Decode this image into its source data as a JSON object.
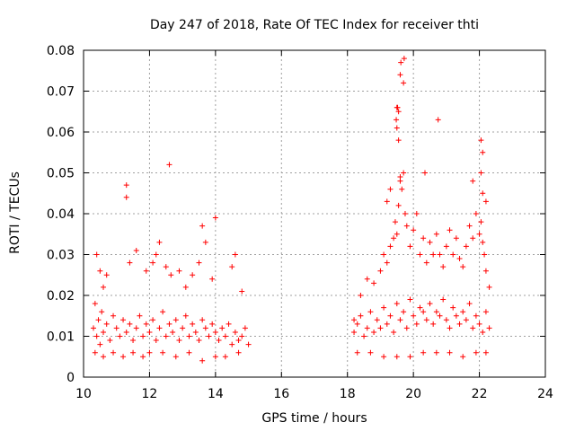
{
  "chart_data": {
    "type": "scatter",
    "title": "Day 247 of 2018, Rate Of TEC Index for receiver thti",
    "xlabel": "GPS time / hours",
    "ylabel": "ROTI / TECUs",
    "xlim": [
      10,
      24
    ],
    "ylim": [
      0,
      0.08
    ],
    "grid": true,
    "marker": "+",
    "color": "#ff0000",
    "x_ticks": [
      "10",
      "12",
      "14",
      "16",
      "18",
      "20",
      "22",
      "24"
    ],
    "y_ticks": [
      "0",
      "0.01",
      "0.02",
      "0.03",
      "0.04",
      "0.05",
      "0.06",
      "0.07",
      "0.08"
    ],
    "series": [
      {
        "name": "ROTI",
        "x": [
          10.3,
          10.35,
          10.4,
          10.45,
          10.5,
          10.55,
          10.6,
          10.7,
          10.8,
          10.9,
          11.0,
          11.1,
          11.2,
          11.3,
          11.4,
          11.5,
          11.6,
          11.7,
          11.8,
          11.9,
          12.0,
          12.1,
          12.2,
          12.3,
          12.4,
          12.5,
          12.6,
          12.7,
          12.8,
          12.9,
          13.0,
          13.1,
          13.2,
          13.3,
          13.4,
          13.5,
          13.6,
          13.7,
          13.8,
          13.9,
          14.0,
          14.1,
          14.2,
          14.3,
          14.4,
          14.5,
          14.6,
          14.7,
          14.8,
          14.9,
          15.0,
          10.4,
          10.5,
          10.6,
          10.7,
          11.3,
          11.3,
          11.4,
          11.6,
          11.9,
          12.1,
          12.2,
          12.3,
          12.5,
          12.6,
          12.65,
          12.9,
          13.1,
          13.3,
          13.5,
          13.6,
          13.7,
          13.9,
          14.0,
          14.5,
          14.6,
          14.8,
          10.35,
          10.6,
          10.9,
          11.2,
          11.5,
          11.8,
          12.0,
          12.4,
          12.8,
          13.2,
          13.6,
          14.0,
          14.3,
          14.7,
          18.2,
          18.3,
          18.4,
          18.5,
          18.6,
          18.7,
          18.8,
          18.9,
          19.0,
          19.1,
          19.2,
          19.3,
          19.4,
          19.5,
          19.6,
          19.7,
          19.8,
          19.9,
          20.0,
          20.1,
          20.2,
          20.3,
          20.4,
          20.5,
          20.6,
          20.7,
          20.8,
          20.9,
          21.0,
          21.1,
          21.2,
          21.3,
          21.4,
          21.5,
          21.6,
          21.7,
          21.8,
          21.9,
          22.0,
          22.1,
          22.2,
          22.3,
          18.2,
          18.4,
          18.6,
          18.8,
          19.0,
          19.1,
          19.2,
          19.3,
          19.4,
          19.45,
          19.5,
          19.55,
          19.6,
          19.65,
          19.7,
          19.75,
          19.8,
          19.9,
          20.0,
          20.1,
          20.2,
          20.3,
          20.4,
          20.5,
          20.6,
          20.7,
          20.8,
          20.9,
          21.0,
          21.1,
          21.2,
          21.3,
          21.4,
          21.5,
          21.6,
          21.7,
          21.8,
          21.9,
          22.0,
          22.05,
          22.1,
          22.15,
          22.2,
          22.3,
          18.3,
          18.7,
          19.1,
          19.5,
          19.9,
          20.3,
          20.7,
          21.1,
          21.5,
          21.9,
          22.2,
          19.5,
          19.55,
          19.6,
          19.62,
          19.7,
          19.72,
          19.5,
          19.55,
          19.48,
          19.52,
          19.6,
          19.3,
          19.2,
          20.35,
          20.75,
          22.05,
          22.1,
          22.05,
          21.8,
          22.1,
          22.2
        ],
        "y": [
          0.012,
          0.018,
          0.01,
          0.014,
          0.008,
          0.016,
          0.011,
          0.013,
          0.009,
          0.015,
          0.012,
          0.01,
          0.014,
          0.011,
          0.013,
          0.009,
          0.012,
          0.015,
          0.01,
          0.013,
          0.011,
          0.014,
          0.009,
          0.012,
          0.016,
          0.01,
          0.013,
          0.011,
          0.014,
          0.009,
          0.012,
          0.015,
          0.01,
          0.013,
          0.011,
          0.009,
          0.014,
          0.012,
          0.01,
          0.013,
          0.011,
          0.009,
          0.012,
          0.01,
          0.013,
          0.008,
          0.011,
          0.009,
          0.01,
          0.012,
          0.008,
          0.03,
          0.026,
          0.022,
          0.025,
          0.047,
          0.044,
          0.028,
          0.031,
          0.026,
          0.028,
          0.03,
          0.033,
          0.027,
          0.052,
          0.025,
          0.026,
          0.022,
          0.025,
          0.028,
          0.037,
          0.033,
          0.024,
          0.039,
          0.027,
          0.03,
          0.021,
          0.006,
          0.005,
          0.006,
          0.005,
          0.006,
          0.005,
          0.006,
          0.006,
          0.005,
          0.006,
          0.004,
          0.005,
          0.005,
          0.006,
          0.011,
          0.013,
          0.015,
          0.01,
          0.012,
          0.016,
          0.011,
          0.014,
          0.012,
          0.017,
          0.013,
          0.015,
          0.011,
          0.018,
          0.014,
          0.016,
          0.012,
          0.019,
          0.015,
          0.013,
          0.017,
          0.016,
          0.014,
          0.018,
          0.013,
          0.016,
          0.015,
          0.019,
          0.014,
          0.012,
          0.017,
          0.015,
          0.013,
          0.016,
          0.014,
          0.018,
          0.012,
          0.015,
          0.013,
          0.011,
          0.016,
          0.012,
          0.014,
          0.02,
          0.024,
          0.023,
          0.026,
          0.03,
          0.028,
          0.032,
          0.034,
          0.038,
          0.035,
          0.042,
          0.048,
          0.046,
          0.05,
          0.04,
          0.037,
          0.032,
          0.036,
          0.04,
          0.03,
          0.034,
          0.028,
          0.033,
          0.03,
          0.035,
          0.03,
          0.027,
          0.032,
          0.036,
          0.03,
          0.034,
          0.029,
          0.027,
          0.032,
          0.037,
          0.034,
          0.04,
          0.035,
          0.038,
          0.033,
          0.03,
          0.026,
          0.022,
          0.006,
          0.006,
          0.005,
          0.005,
          0.005,
          0.006,
          0.006,
          0.006,
          0.005,
          0.006,
          0.006,
          0.066,
          0.065,
          0.074,
          0.077,
          0.072,
          0.078,
          0.061,
          0.058,
          0.063,
          0.066,
          0.049,
          0.046,
          0.043,
          0.05,
          0.063,
          0.058,
          0.055,
          0.05,
          0.048,
          0.045,
          0.043
        ]
      }
    ]
  }
}
